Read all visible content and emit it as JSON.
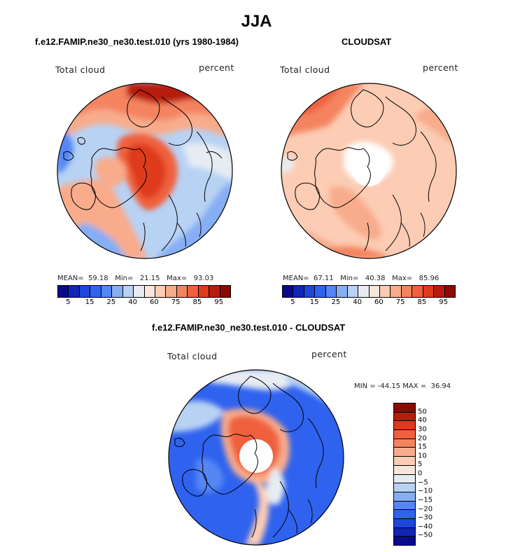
{
  "page": {
    "title": "JJA",
    "panel1_title": "f.e12.FAMIP.ne30_ne30.test.010 (yrs 1980-1984)",
    "panel2_title": "CLOUDSAT",
    "panel3_title": "f.e12.FAMIP.ne30_ne30.test.010 - CLOUDSAT"
  },
  "chart_data": [
    {
      "type": "heatmap",
      "projection": "polar stereographic (north)",
      "title": "f.e12.FAMIP.ne30_ne30.test.010 (yrs 1980-1984)",
      "left_label": "Total cloud",
      "right_label": "percent",
      "stats": {
        "mean_label": "MEAN=",
        "mean": "59.18",
        "min_label": "Min=",
        "min": "21.15",
        "max_label": "Max=",
        "max": "93.03"
      },
      "colorbar": {
        "levels": [
          5,
          10,
          15,
          20,
          25,
          30,
          40,
          50,
          60,
          70,
          75,
          80,
          85,
          90,
          95
        ],
        "tick_labels": [
          "5",
          "15",
          "25",
          "40",
          "60",
          "75",
          "85",
          "95"
        ],
        "colors": [
          "#0a0a8c",
          "#1226b4",
          "#1e46d8",
          "#2f62ee",
          "#5486f4",
          "#86aef4",
          "#b8d2f4",
          "#e6ecf2",
          "#f8e6dc",
          "#fcccb4",
          "#f8ac8c",
          "#f48460",
          "#f0603c",
          "#de3a1c",
          "#b81c0c",
          "#8c0a04"
        ]
      }
    },
    {
      "type": "heatmap",
      "projection": "polar stereographic (north)",
      "title": "CLOUDSAT",
      "left_label": "Total cloud",
      "right_label": "percent",
      "stats": {
        "mean_label": "MEAN=",
        "mean": "67.11",
        "min_label": "Min=",
        "min": "40.38",
        "max_label": "Max=",
        "max": "85.96"
      },
      "colorbar": {
        "levels": [
          5,
          10,
          15,
          20,
          25,
          30,
          40,
          50,
          60,
          70,
          75,
          80,
          85,
          90,
          95
        ],
        "tick_labels": [
          "5",
          "15",
          "25",
          "40",
          "60",
          "75",
          "85",
          "95"
        ],
        "colors": [
          "#0a0a8c",
          "#1226b4",
          "#1e46d8",
          "#2f62ee",
          "#5486f4",
          "#86aef4",
          "#b8d2f4",
          "#e6ecf2",
          "#f8e6dc",
          "#fcccb4",
          "#f8ac8c",
          "#f48460",
          "#f0603c",
          "#de3a1c",
          "#b81c0c",
          "#8c0a04"
        ]
      }
    },
    {
      "type": "heatmap",
      "projection": "polar stereographic (north)",
      "title": "f.e12.FAMIP.ne30_ne30.test.010 - CLOUDSAT",
      "left_label": "Total cloud",
      "right_label": "percent",
      "stats": {
        "min_label": "MIN =",
        "min": "-44.15",
        "max_label": "MAX =",
        "max": "36.94"
      },
      "colorbar": {
        "levels": [
          50,
          40,
          30,
          20,
          15,
          10,
          5,
          0,
          -5,
          -10,
          -15,
          -20,
          -30,
          -40,
          -50
        ],
        "tick_labels": [
          "50",
          "40",
          "30",
          "20",
          "15",
          "10",
          "5",
          "0",
          "−5",
          "−10",
          "−15",
          "−20",
          "−30",
          "−40",
          "−50"
        ],
        "colors": [
          "#8c0a04",
          "#b81c0c",
          "#de3a1c",
          "#f0603c",
          "#f48460",
          "#f8ac8c",
          "#fcccb4",
          "#f8e6dc",
          "#e6ecf2",
          "#b8d2f4",
          "#86aef4",
          "#5486f4",
          "#2f62ee",
          "#1e46d8",
          "#1226b4",
          "#0a0a8c"
        ]
      }
    }
  ]
}
